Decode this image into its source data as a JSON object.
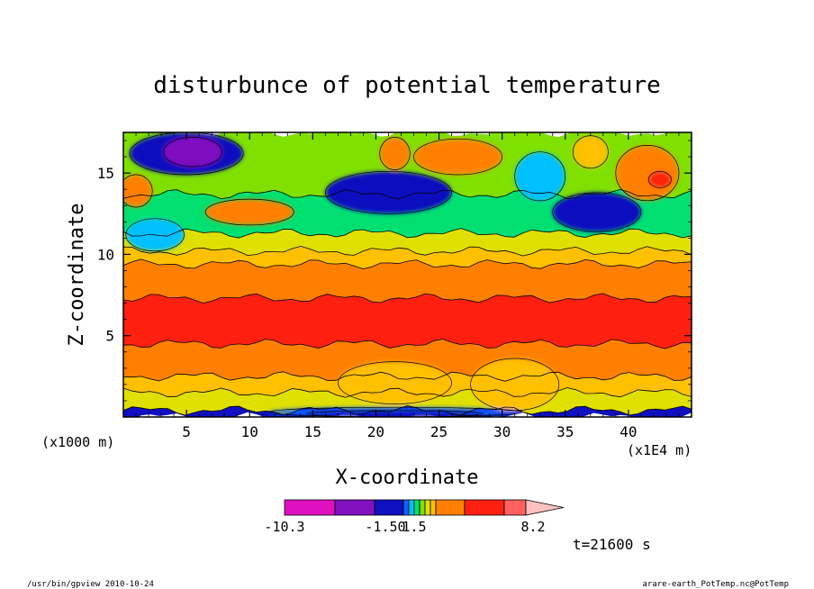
{
  "chart_data": {
    "type": "heatmap",
    "title": "disturbunce of potential temperature",
    "xlabel": "X-coordinate",
    "ylabel": "Z-coordinate",
    "x_units": "(x1000 m)",
    "x_range": [
      0,
      45
    ],
    "y_range": [
      0,
      17.5
    ],
    "x_ticks": [
      "5",
      "10",
      "15",
      "20",
      "25",
      "30",
      "35",
      "40"
    ],
    "y_ticks": [
      "5",
      "10",
      "15"
    ],
    "x_tick_values": [
      5,
      10,
      15,
      20,
      25,
      30,
      35,
      40
    ],
    "y_tick_values": [
      5,
      10,
      15
    ],
    "x_scale_note": "(x1E4 m)",
    "colorbar": {
      "labels": [
        "-10.3",
        "-1.50",
        "1.5",
        "8.2"
      ],
      "colors": [
        "#e010c0",
        "#8010c0",
        "#1010c0",
        "#1060ff",
        "#00c0ff",
        "#00e070",
        "#80e000",
        "#e0e000",
        "#ffc000",
        "#ff8000",
        "#ff2010",
        "#ff6060",
        "#ffc0c0"
      ]
    },
    "bands": [
      {
        "z_bottom": 0.0,
        "z_top": 0.4,
        "color": "#1010c0"
      },
      {
        "z_bottom": 0.4,
        "z_top": 1.5,
        "color": "#e0e000"
      },
      {
        "z_bottom": 1.5,
        "z_top": 2.5,
        "color": "#ffc000"
      },
      {
        "z_bottom": 2.5,
        "z_top": 4.5,
        "color": "#ff8000"
      },
      {
        "z_bottom": 4.5,
        "z_top": 7.3,
        "color": "#ff2010"
      },
      {
        "z_bottom": 7.3,
        "z_top": 9.4,
        "color": "#ff8000"
      },
      {
        "z_bottom": 9.4,
        "z_top": 10.2,
        "color": "#ffc000"
      },
      {
        "z_bottom": 10.2,
        "z_top": 11.3,
        "color": "#e0e000"
      },
      {
        "z_bottom": 11.3,
        "z_top": 13.7,
        "color": "#00e070"
      },
      {
        "z_bottom": 13.7,
        "z_top": 17.5,
        "color": "#80e000"
      }
    ],
    "blobs": [
      {
        "x": 5.0,
        "z": 16.2,
        "rx": 4.5,
        "rz": 1.3,
        "color": "#1010c0"
      },
      {
        "x": 5.5,
        "z": 16.3,
        "rx": 2.3,
        "rz": 0.9,
        "color": "#8010c0"
      },
      {
        "x": 21.0,
        "z": 13.8,
        "rx": 5.0,
        "rz": 1.3,
        "color": "#1010c0"
      },
      {
        "x": 26.5,
        "z": 16.0,
        "rx": 3.5,
        "rz": 1.1,
        "color": "#ff8000"
      },
      {
        "x": 21.5,
        "z": 16.2,
        "rx": 1.2,
        "rz": 1.0,
        "color": "#ff8000"
      },
      {
        "x": 37.5,
        "z": 12.6,
        "rx": 3.5,
        "rz": 1.2,
        "color": "#1010c0"
      },
      {
        "x": 41.5,
        "z": 15.0,
        "rx": 2.5,
        "rz": 1.7,
        "color": "#ff8000"
      },
      {
        "x": 42.5,
        "z": 14.6,
        "rx": 0.9,
        "rz": 0.5,
        "color": "#ff2010"
      },
      {
        "x": 2.5,
        "z": 11.2,
        "rx": 2.3,
        "rz": 1.0,
        "color": "#00c0ff"
      },
      {
        "x": 10.0,
        "z": 12.6,
        "rx": 3.5,
        "rz": 0.8,
        "color": "#ff8000"
      },
      {
        "x": 1.0,
        "z": 13.9,
        "rx": 1.3,
        "rz": 1.0,
        "color": "#ff8000"
      },
      {
        "x": 33.0,
        "z": 14.8,
        "rx": 2.0,
        "rz": 1.5,
        "color": "#00c0ff"
      },
      {
        "x": 37.0,
        "z": 16.3,
        "rx": 1.4,
        "rz": 1.0,
        "color": "#ffc000"
      },
      {
        "x": 31.0,
        "z": 2.0,
        "rx": 3.5,
        "rz": 1.6,
        "color": "#ffc000"
      },
      {
        "x": 21.5,
        "z": 2.1,
        "rx": 4.5,
        "rz": 1.3,
        "color": "#ffc000"
      },
      {
        "x": 21.5,
        "z": 0.3,
        "rx": 10.0,
        "rz": 0.3,
        "color": "#1060ff"
      },
      {
        "x": 21.5,
        "z": 0.2,
        "rx": 7.0,
        "rz": 0.2,
        "color": "#1010c0"
      }
    ],
    "time_label": "t=21600 s",
    "footer_left": "/usr/bin/gpview  2010-10-24",
    "footer_right": "arare-earth_PotTemp.nc@PotTemp"
  }
}
